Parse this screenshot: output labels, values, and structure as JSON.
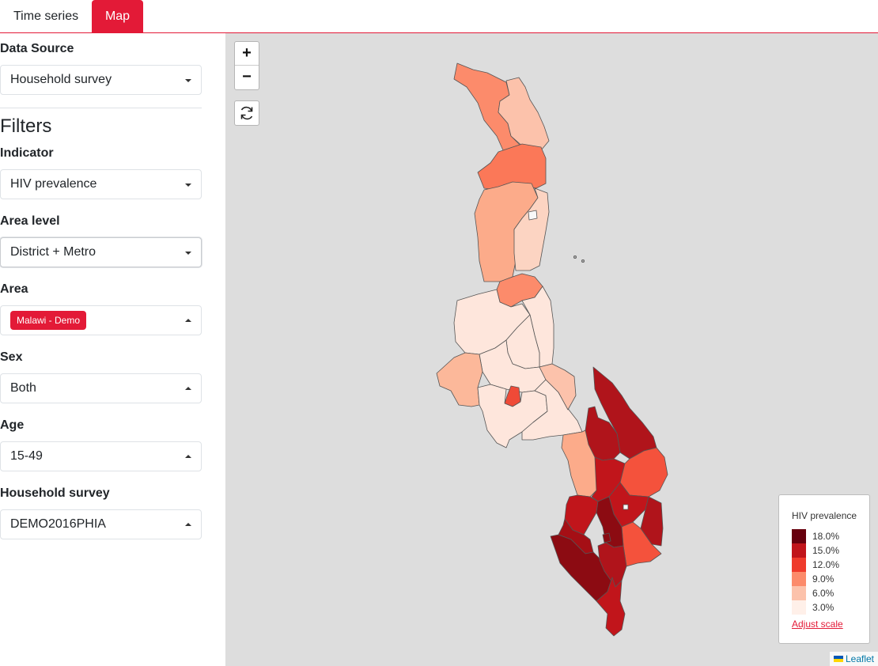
{
  "tabs": [
    {
      "label": "Time series",
      "active": false
    },
    {
      "label": "Map",
      "active": true
    }
  ],
  "sidebar": {
    "data_source": {
      "label": "Data Source",
      "value": "Household survey"
    },
    "filters_title": "Filters",
    "indicator": {
      "label": "Indicator",
      "value": "HIV prevalence"
    },
    "area_level": {
      "label": "Area level",
      "value": "District + Metro"
    },
    "area": {
      "label": "Area",
      "chip": "Malawi - Demo"
    },
    "sex": {
      "label": "Sex",
      "value": "Both"
    },
    "age": {
      "label": "Age",
      "value": "15-49"
    },
    "survey": {
      "label": "Household survey",
      "value": "DEMO2016PHIA"
    }
  },
  "map": {
    "zoom_in": "+",
    "zoom_out": "−",
    "legend": {
      "title": "HIV prevalence",
      "items": [
        {
          "label": "18.0%",
          "color": "#67000d"
        },
        {
          "label": "15.0%",
          "color": "#c1151b"
        },
        {
          "label": "12.0%",
          "color": "#ef3b2c"
        },
        {
          "label": "9.0%",
          "color": "#fc8b6b"
        },
        {
          "label": "6.0%",
          "color": "#fcc2ab"
        },
        {
          "label": "3.0%",
          "color": "#fff0e9"
        }
      ],
      "adjust_link": "Adjust scale"
    },
    "attribution": "Leaflet"
  },
  "colors": {
    "accent": "#e31a37",
    "map_background": "#dddddd"
  }
}
